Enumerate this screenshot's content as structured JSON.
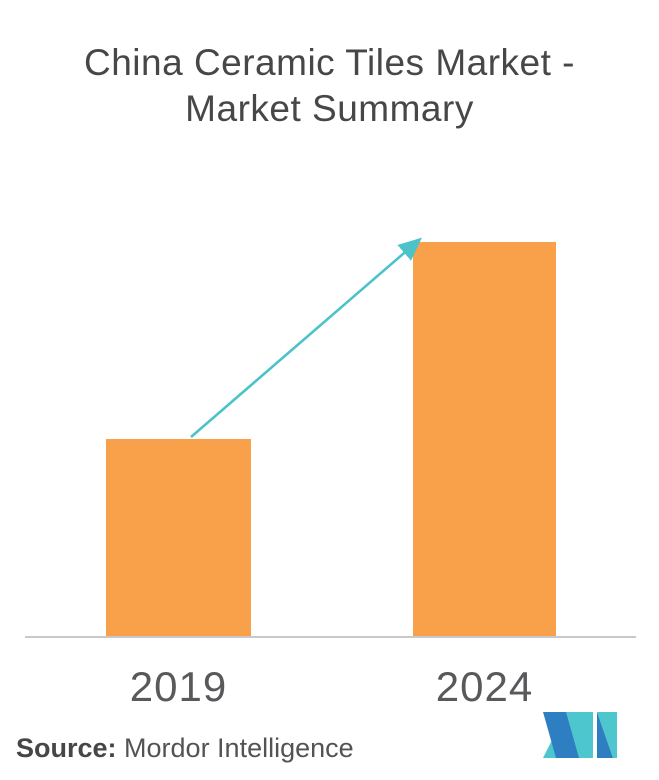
{
  "title": "China Ceramic Tiles Market - Market Summary",
  "chart_data": {
    "type": "bar",
    "title": "China Ceramic Tiles Market - Market Summary",
    "categories": [
      "2019",
      "2024"
    ],
    "values": [
      1,
      2
    ],
    "xlabel": "",
    "ylabel": "",
    "ylim": [
      0,
      2.3
    ],
    "grid": false,
    "legend": false,
    "value_axis_labels_shown": false,
    "bar_color": "#f9a04a",
    "axis_line_color": "#c9c9c9",
    "annotation_arrow": {
      "description": "growth arrow from top of 2019 bar to top of 2024 bar",
      "color": "#4cc3c9"
    }
  },
  "source": {
    "label": "Source:",
    "text": " Mordor Intelligence"
  },
  "logo": {
    "name": "mordor-intelligence-logo",
    "teal": "#4dc6cd",
    "blue": "#2e7fc1"
  }
}
